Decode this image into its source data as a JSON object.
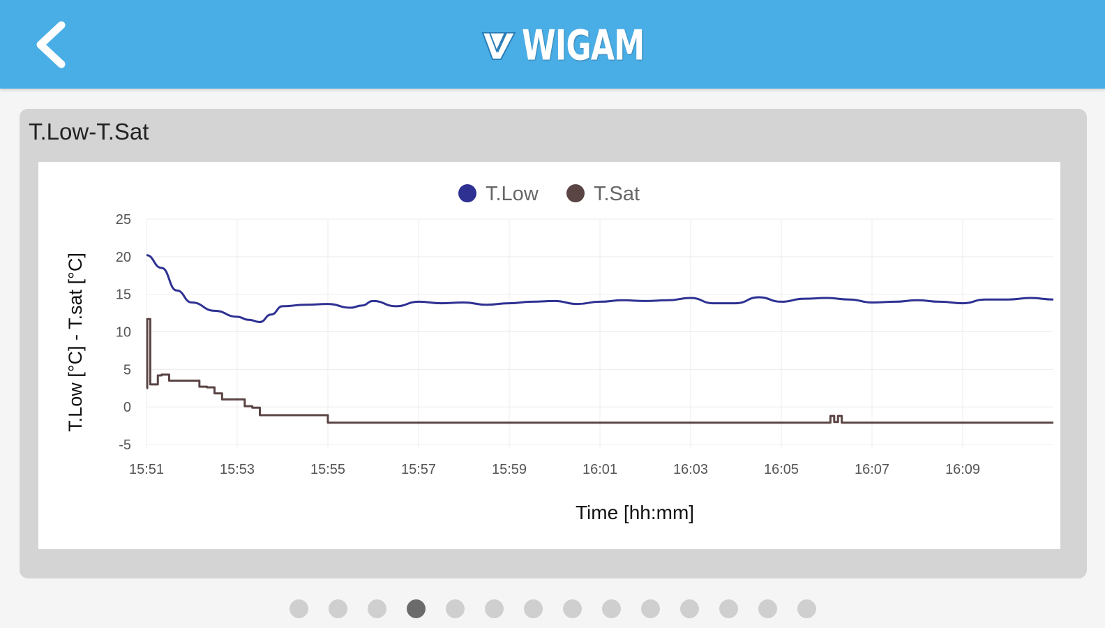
{
  "header": {
    "brand": "WIGAM",
    "back_icon": "chevron-left-icon",
    "background": "#4aaee6"
  },
  "card": {
    "title": "T.Low-T.Sat"
  },
  "chart_data": {
    "type": "line",
    "title": "",
    "xlabel": "Time [hh:mm]",
    "ylabel": "T.Low [°C] - T.sat [°C]",
    "ylim": [
      -5,
      25
    ],
    "xlim_minutes_range": [
      "15:51",
      "16:11"
    ],
    "yticks": [
      "25",
      "20",
      "15",
      "10",
      "5",
      "0",
      "-5"
    ],
    "xticks": [
      "15:51",
      "15:53",
      "15:55",
      "15:57",
      "15:59",
      "16:01",
      "16:03",
      "16:05",
      "16:07",
      "16:09"
    ],
    "grid": true,
    "legend": "top-center",
    "series": [
      {
        "name": "T.Low",
        "color": "#2e3192",
        "x": [
          "15:51",
          "15:51:20",
          "15:51:40",
          "15:52",
          "15:52:30",
          "15:53",
          "15:53:15",
          "15:53:30",
          "15:53:45",
          "15:54",
          "15:54:30",
          "15:55",
          "15:55:30",
          "15:55:45",
          "15:56",
          "15:56:30",
          "15:57",
          "15:57:30",
          "15:58",
          "15:58:30",
          "15:59",
          "15:59:30",
          "16:00",
          "16:00:30",
          "16:01",
          "16:01:30",
          "16:02",
          "16:02:30",
          "16:03",
          "16:03:30",
          "16:04",
          "16:04:30",
          "16:05",
          "16:05:30",
          "16:06",
          "16:06:30",
          "16:07",
          "16:07:30",
          "16:08",
          "16:08:30",
          "16:09",
          "16:09:30",
          "16:10",
          "16:10:30",
          "16:11"
        ],
        "y": [
          20.2,
          18.5,
          15.5,
          13.9,
          12.8,
          12.0,
          11.6,
          11.3,
          12.3,
          13.4,
          13.6,
          13.7,
          13.2,
          13.5,
          14.1,
          13.4,
          14.0,
          13.8,
          13.9,
          13.6,
          13.8,
          14.0,
          14.1,
          13.7,
          14.0,
          14.2,
          14.1,
          14.2,
          14.5,
          13.8,
          13.8,
          14.6,
          14.0,
          14.4,
          14.5,
          14.3,
          13.9,
          14.0,
          14.2,
          14.0,
          13.8,
          14.3,
          14.3,
          14.5,
          14.3
        ]
      },
      {
        "name": "T.Sat",
        "color": "#5a4444",
        "x": [
          "15:51",
          "15:51:01",
          "15:51:05",
          "15:51:15",
          "15:51:20",
          "15:51:30",
          "15:52",
          "15:52:10",
          "15:52:20",
          "15:52:30",
          "15:52:40",
          "15:53",
          "15:53:10",
          "15:53:20",
          "15:53:30",
          "15:54",
          "15:54:30",
          "15:54:50",
          "15:55",
          "15:58",
          "16:01",
          "16:04",
          "16:06",
          "16:06:05",
          "16:06:10",
          "16:06:15",
          "16:06:20",
          "16:07",
          "16:09",
          "16:11"
        ],
        "y": [
          2.5,
          11.7,
          3.0,
          4.2,
          4.3,
          3.5,
          3.5,
          2.7,
          2.6,
          1.8,
          1.0,
          1.0,
          0.1,
          -0.1,
          -1.1,
          -1.1,
          -1.1,
          -1.1,
          -2.1,
          -2.1,
          -2.1,
          -2.1,
          -2.1,
          -1.2,
          -2.0,
          -1.2,
          -2.1,
          -2.1,
          -2.1,
          -2.1
        ]
      }
    ]
  },
  "pager": {
    "count": 14,
    "active_index": 3
  }
}
